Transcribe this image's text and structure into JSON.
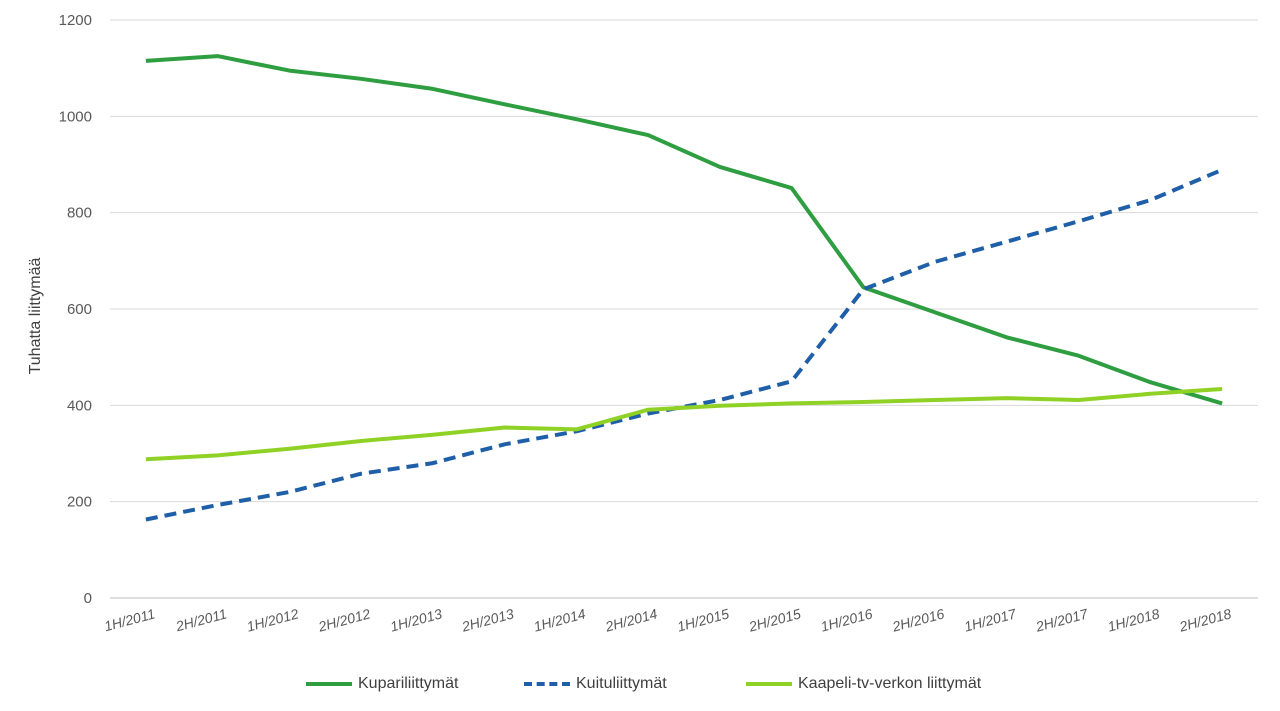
{
  "chart_data": {
    "type": "line",
    "title": "",
    "xlabel": "",
    "ylabel": "Tuhatta liittymää",
    "ylim": [
      0,
      1200
    ],
    "yticks": [
      0,
      200,
      400,
      600,
      800,
      1000,
      1200
    ],
    "grid": true,
    "legend_position": "bottom",
    "categories": [
      "1H/2011",
      "2H/2011",
      "1H/2012",
      "2H/2012",
      "1H/2013",
      "2H/2013",
      "1H/2014",
      "2H/2014",
      "1H/2015",
      "2H/2015",
      "1H/2016",
      "2H/2016",
      "1H/2017",
      "2H/2017",
      "1H/2018",
      "2H/2018"
    ],
    "series": [
      {
        "name": "Kupariliittymät",
        "color": "#2e9e41",
        "style": "solid",
        "values": [
          1115,
          1125,
          1095,
          1078,
          1057,
          1025,
          994,
          961,
          895,
          851,
          645,
          593,
          541,
          503,
          448,
          404
        ]
      },
      {
        "name": "Kuituliittymät",
        "color": "#1f5fa8",
        "style": "dashed",
        "values": [
          163,
          193,
          220,
          258,
          280,
          319,
          346,
          383,
          411,
          450,
          641,
          698,
          740,
          782,
          826,
          889
        ]
      },
      {
        "name": "Kaapeli-tv-verkon liittymät",
        "color": "#8fd225",
        "style": "solid",
        "values": [
          288,
          296,
          310,
          326,
          339,
          354,
          350,
          391,
          399,
          404,
          407,
          411,
          415,
          411,
          424,
          434
        ]
      }
    ]
  }
}
